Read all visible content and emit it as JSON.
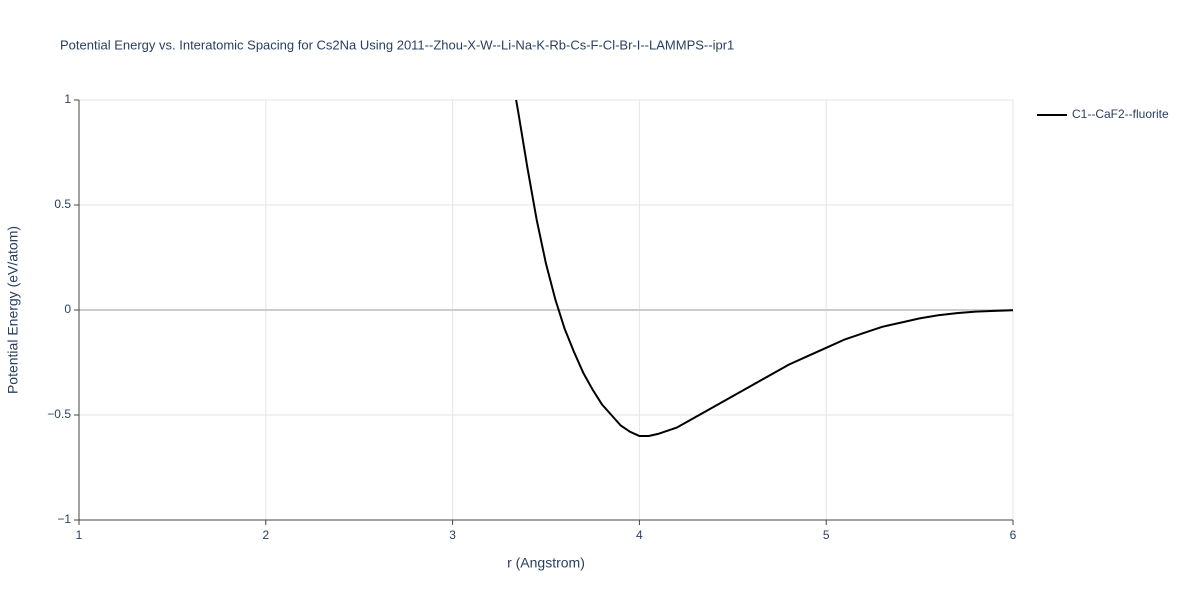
{
  "chart_data": {
    "type": "line",
    "title": "Potential Energy vs. Interatomic Spacing for Cs2Na Using 2011--Zhou-X-W--Li-Na-K-Rb-Cs-F-Cl-Br-I--LAMMPS--ipr1",
    "x_label": "r (Angstrom)",
    "y_label": "Potential Energy (eV/atom)",
    "x": [
      3.34,
      3.35,
      3.4,
      3.45,
      3.5,
      3.55,
      3.6,
      3.65,
      3.7,
      3.75,
      3.8,
      3.85,
      3.9,
      3.95,
      4.0,
      4.05,
      4.1,
      4.2,
      4.3,
      4.4,
      4.5,
      4.6,
      4.7,
      4.8,
      4.9,
      5.0,
      5.1,
      5.2,
      5.3,
      5.4,
      5.5,
      5.6,
      5.7,
      5.8,
      5.9,
      6.0
    ],
    "series": [
      {
        "name": "C1--CaF2--fluorite",
        "color": "#000000",
        "values": [
          1.0,
          0.95,
          0.68,
          0.43,
          0.22,
          0.05,
          -0.09,
          -0.2,
          -0.3,
          -0.38,
          -0.45,
          -0.5,
          -0.55,
          -0.58,
          -0.6,
          -0.6,
          -0.59,
          -0.56,
          -0.51,
          -0.46,
          -0.41,
          -0.36,
          -0.31,
          -0.26,
          -0.22,
          -0.18,
          -0.14,
          -0.11,
          -0.08,
          -0.06,
          -0.04,
          -0.025,
          -0.015,
          -0.008,
          -0.004,
          -0.001
        ]
      }
    ],
    "xlim": [
      1,
      6
    ],
    "xticks": [
      1,
      2,
      3,
      4,
      5,
      6
    ],
    "ylim": [
      -1,
      1
    ],
    "yticks": [
      {
        "value": -1,
        "label": "−1"
      },
      {
        "value": -0.5,
        "label": "−0.5"
      },
      0,
      0.5,
      1
    ],
    "grid": true
  }
}
